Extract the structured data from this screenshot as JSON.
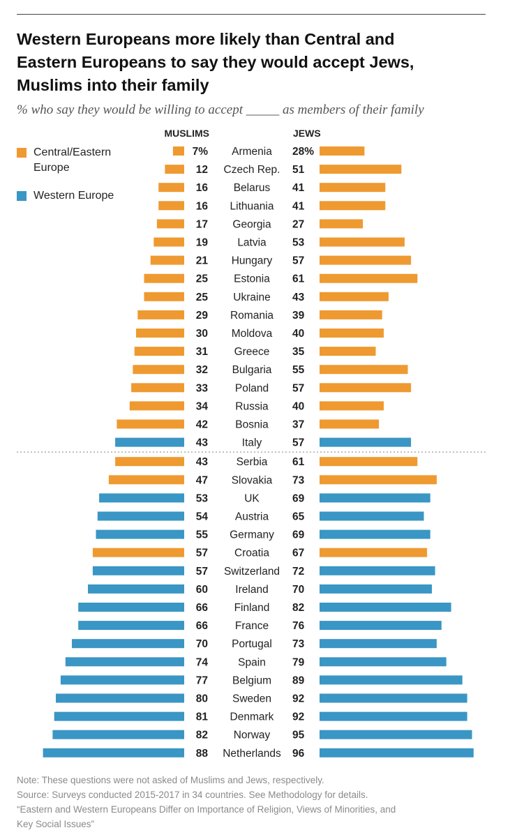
{
  "title_lines": [
    "Western Europeans more likely than Central and",
    "Eastern Europeans to say they would accept Jews,",
    "Muslims into their family"
  ],
  "subtitle": "% who say they would be willing to accept _____ as members of their family",
  "legend": [
    {
      "label_lines": [
        "Central/Eastern",
        "Europe"
      ],
      "color": "#ee9a31"
    },
    {
      "label_lines": [
        "Western Europe"
      ],
      "color": "#3a96c4"
    }
  ],
  "notes": {
    "note": "Note: These questions were not asked of Muslims and Jews, respectively.",
    "source": "Source: Surveys conducted 2015-2017 in 34 countries. See Methodology for details.",
    "report_lines": [
      "“Eastern and Western Europeans Differ on Importance of Religion, Views of Minorities, and",
      "Key Social Issues”"
    ]
  },
  "chart_data": {
    "type": "bar",
    "layout": "back-to-back horizontal bars",
    "columns": {
      "left": "MUSLIMS",
      "right": "JEWS"
    },
    "first_row_suffix": "%",
    "colors": {
      "central_eastern": "#ee9a31",
      "western": "#3a96c4"
    },
    "divider_after": "Italy",
    "rows": [
      {
        "country": "Armenia",
        "muslims": 7,
        "jews": 28,
        "region": "central_eastern"
      },
      {
        "country": "Czech Rep.",
        "muslims": 12,
        "jews": 51,
        "region": "central_eastern"
      },
      {
        "country": "Belarus",
        "muslims": 16,
        "jews": 41,
        "region": "central_eastern"
      },
      {
        "country": "Lithuania",
        "muslims": 16,
        "jews": 41,
        "region": "central_eastern"
      },
      {
        "country": "Georgia",
        "muslims": 17,
        "jews": 27,
        "region": "central_eastern"
      },
      {
        "country": "Latvia",
        "muslims": 19,
        "jews": 53,
        "region": "central_eastern"
      },
      {
        "country": "Hungary",
        "muslims": 21,
        "jews": 57,
        "region": "central_eastern"
      },
      {
        "country": "Estonia",
        "muslims": 25,
        "jews": 61,
        "region": "central_eastern"
      },
      {
        "country": "Ukraine",
        "muslims": 25,
        "jews": 43,
        "region": "central_eastern"
      },
      {
        "country": "Romania",
        "muslims": 29,
        "jews": 39,
        "region": "central_eastern"
      },
      {
        "country": "Moldova",
        "muslims": 30,
        "jews": 40,
        "region": "central_eastern"
      },
      {
        "country": "Greece",
        "muslims": 31,
        "jews": 35,
        "region": "central_eastern"
      },
      {
        "country": "Bulgaria",
        "muslims": 32,
        "jews": 55,
        "region": "central_eastern"
      },
      {
        "country": "Poland",
        "muslims": 33,
        "jews": 57,
        "region": "central_eastern"
      },
      {
        "country": "Russia",
        "muslims": 34,
        "jews": 40,
        "region": "central_eastern"
      },
      {
        "country": "Bosnia",
        "muslims": 42,
        "jews": 37,
        "region": "central_eastern"
      },
      {
        "country": "Italy",
        "muslims": 43,
        "jews": 57,
        "region": "western"
      },
      {
        "country": "Serbia",
        "muslims": 43,
        "jews": 61,
        "region": "central_eastern"
      },
      {
        "country": "Slovakia",
        "muslims": 47,
        "jews": 73,
        "region": "central_eastern"
      },
      {
        "country": "UK",
        "muslims": 53,
        "jews": 69,
        "region": "western"
      },
      {
        "country": "Austria",
        "muslims": 54,
        "jews": 65,
        "region": "western"
      },
      {
        "country": "Germany",
        "muslims": 55,
        "jews": 69,
        "region": "western"
      },
      {
        "country": "Croatia",
        "muslims": 57,
        "jews": 67,
        "region": "central_eastern"
      },
      {
        "country": "Switzerland",
        "muslims": 57,
        "jews": 72,
        "region": "western"
      },
      {
        "country": "Ireland",
        "muslims": 60,
        "jews": 70,
        "region": "western"
      },
      {
        "country": "Finland",
        "muslims": 66,
        "jews": 82,
        "region": "western"
      },
      {
        "country": "France",
        "muslims": 66,
        "jews": 76,
        "region": "western"
      },
      {
        "country": "Portugal",
        "muslims": 70,
        "jews": 73,
        "region": "western"
      },
      {
        "country": "Spain",
        "muslims": 74,
        "jews": 79,
        "region": "western"
      },
      {
        "country": "Belgium",
        "muslims": 77,
        "jews": 89,
        "region": "western"
      },
      {
        "country": "Sweden",
        "muslims": 80,
        "jews": 92,
        "region": "western"
      },
      {
        "country": "Denmark",
        "muslims": 81,
        "jews": 92,
        "region": "western"
      },
      {
        "country": "Norway",
        "muslims": 82,
        "jews": 95,
        "region": "western"
      },
      {
        "country": "Netherlands",
        "muslims": 88,
        "jews": 96,
        "region": "western"
      }
    ]
  }
}
